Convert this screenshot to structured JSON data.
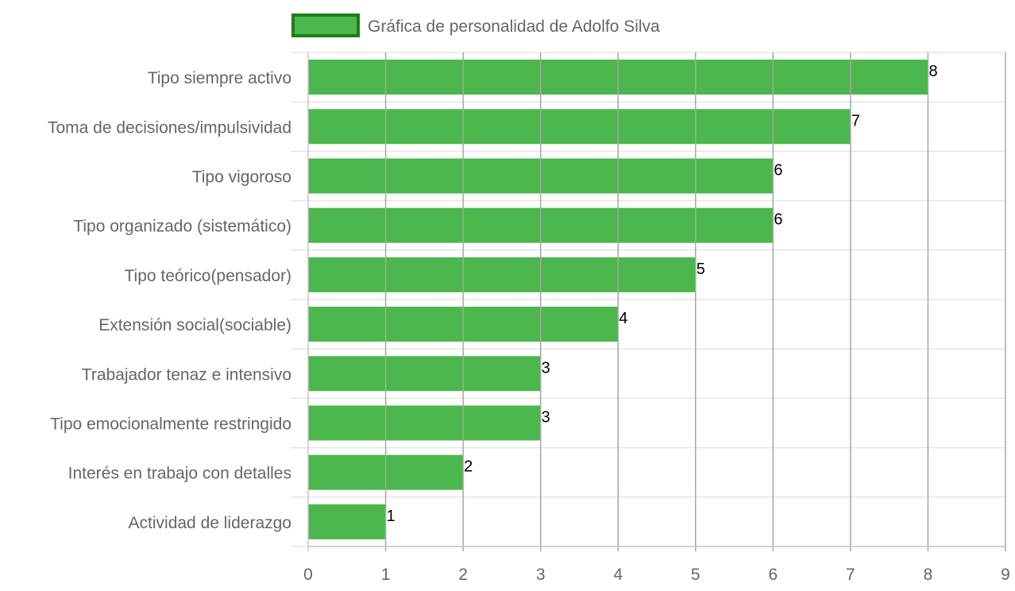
{
  "chart_data": {
    "type": "bar",
    "orientation": "horizontal",
    "legend": {
      "label": "Gráfica de personalidad de Adolfo Silva",
      "position": "top-center"
    },
    "categories": [
      "Tipo siempre activo",
      "Toma de decisiones/impulsividad",
      "Tipo vigoroso",
      "Tipo organizado (sistemático)",
      "Tipo teórico(pensador)",
      "Extensión social(sociable)",
      "Trabajador tenaz e intensivo",
      "Tipo emocionalmente restringido",
      "Interés en trabajo con detalles",
      "Actividad de liderazgo"
    ],
    "series": [
      {
        "name": "Gráfica de personalidad de Adolfo Silva",
        "values": [
          8,
          7,
          6,
          6,
          5,
          4,
          3,
          3,
          2,
          1
        ]
      }
    ],
    "xlim": [
      0,
      9
    ],
    "xticks": [
      "0",
      "1",
      "2",
      "3",
      "4",
      "5",
      "6",
      "7",
      "8",
      "9"
    ],
    "grid": true,
    "data_labels": true,
    "colors": {
      "bar_fill": "#4cb74c",
      "legend_border": "#1a7f1a",
      "grid": "#e6e6e6",
      "vgrid": "#a6a6a6",
      "text": "#666666"
    }
  }
}
